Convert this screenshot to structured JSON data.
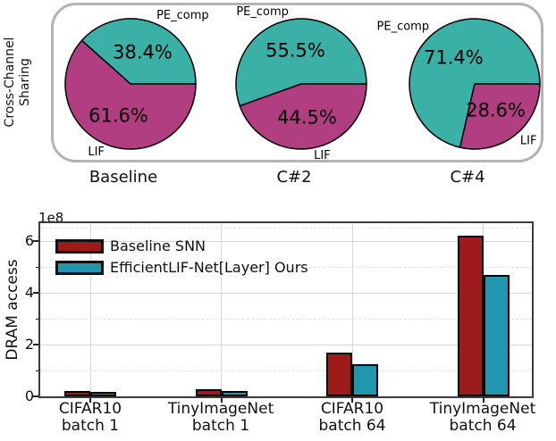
{
  "panel": {
    "group_label": "Cross-Channel\nSharing"
  },
  "colors": {
    "pie_pe_comp": "#3ab0a6",
    "pie_lif": "#b03e81",
    "bar_baseline": "#9e1b1b",
    "bar_ours": "#2196ae",
    "slice_edge": "#000000",
    "panel_border": "#b3b3b3",
    "grid_major": "#d8d8d8",
    "grid_minor": "#e2e2e2",
    "spine": "#3c3c3c"
  },
  "chart_data": [
    {
      "type": "pie",
      "title": "Baseline",
      "slices": [
        {
          "label": "PE_comp",
          "value": 38.4,
          "pct_label": "38.4%",
          "color": "#3ab0a6"
        },
        {
          "label": "LIF",
          "value": 61.6,
          "pct_label": "61.6%",
          "color": "#b03e81"
        }
      ],
      "start_angle_deg": 0,
      "direction": "counterclockwise"
    },
    {
      "type": "pie",
      "title": "C#2",
      "slices": [
        {
          "label": "PE_comp",
          "value": 55.5,
          "pct_label": "55.5%",
          "color": "#3ab0a6"
        },
        {
          "label": "LIF",
          "value": 44.5,
          "pct_label": "44.5%",
          "color": "#b03e81"
        }
      ],
      "start_angle_deg": 0,
      "direction": "counterclockwise"
    },
    {
      "type": "pie",
      "title": "C#4",
      "slices": [
        {
          "label": "PE_comp",
          "value": 71.4,
          "pct_label": "71.4%",
          "color": "#3ab0a6"
        },
        {
          "label": "LIF",
          "value": 28.6,
          "pct_label": "28.6%",
          "color": "#b03e81"
        }
      ],
      "start_angle_deg": 0,
      "direction": "counterclockwise"
    },
    {
      "type": "bar",
      "ylabel": "DRAM access",
      "offset_label": "1e8",
      "unit": "1e8",
      "categories": [
        "CIFAR10\nbatch 1",
        "TinyImageNet\nbatch 1",
        "CIFAR10\nbatch 64",
        "TinyImageNet\nbatch 64"
      ],
      "series": [
        {
          "name": "Baseline SNN",
          "color": "#9e1b1b",
          "values": [
            0.2,
            0.28,
            1.69,
            6.22
          ]
        },
        {
          "name": "EfficientLIF-Net[Layer] Ours",
          "color": "#2196ae",
          "values": [
            0.17,
            0.22,
            1.25,
            4.7
          ]
        }
      ],
      "ylim": [
        0,
        6.69
      ],
      "yticks": [
        0,
        2,
        4,
        6
      ],
      "yticks_minor": [
        1,
        3,
        5
      ],
      "ygrid_minor": [
        1,
        3,
        5,
        6.5
      ],
      "grid": true,
      "legend_position": "upper left"
    }
  ]
}
